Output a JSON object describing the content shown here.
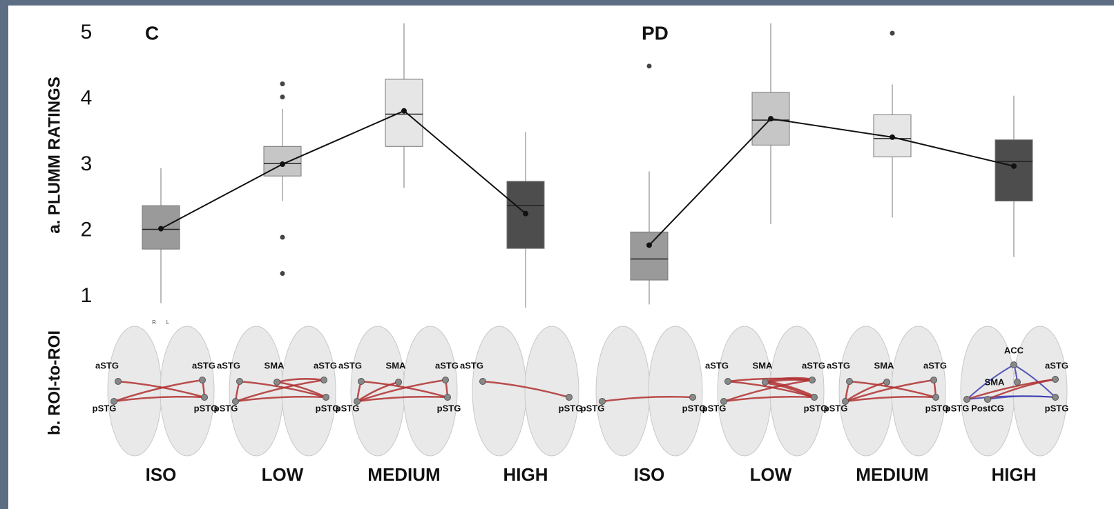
{
  "chart_data": [
    {
      "type": "box",
      "title": "C",
      "ylabel": "a. PLUMM RATINGS",
      "categories": [
        "ISO",
        "LOW",
        "MEDIUM",
        "HIGH"
      ],
      "colors": [
        "#9a9a9a",
        "#c6c6c6",
        "#e6e6e6",
        "#4d4d4d"
      ],
      "boxes": [
        {
          "whislo": 0.9,
          "q1": 1.72,
          "med": 2.02,
          "q3": 2.38,
          "whishi": 2.95,
          "mean": 2.03,
          "fliers": []
        },
        {
          "whislo": 2.45,
          "q1": 2.83,
          "med": 3.02,
          "q3": 3.28,
          "whishi": 3.85,
          "mean": 3.01,
          "fliers": [
            4.23,
            4.03,
            1.9,
            1.35
          ]
        },
        {
          "whislo": 2.65,
          "q1": 3.28,
          "med": 3.77,
          "q3": 4.3,
          "whishi": 5.15,
          "mean": 3.82,
          "fliers": []
        },
        {
          "whislo": 0.83,
          "q1": 1.73,
          "med": 2.38,
          "q3": 2.75,
          "whishi": 3.5,
          "mean": 2.26,
          "fliers": []
        }
      ],
      "mean_line": true,
      "ylim": [
        0.8,
        5.2
      ],
      "yticks": [
        1,
        2,
        3,
        4,
        5
      ]
    },
    {
      "type": "box",
      "title": "PD",
      "categories": [
        "ISO",
        "LOW",
        "MEDIUM",
        "HIGH"
      ],
      "colors": [
        "#9a9a9a",
        "#c6c6c6",
        "#e6e6e6",
        "#4d4d4d"
      ],
      "boxes": [
        {
          "whislo": 0.88,
          "q1": 1.25,
          "med": 1.57,
          "q3": 1.98,
          "whishi": 2.9,
          "mean": 1.78,
          "fliers": [
            4.5
          ]
        },
        {
          "whislo": 2.1,
          "q1": 3.3,
          "med": 3.68,
          "q3": 4.1,
          "whishi": 5.15,
          "mean": 3.7,
          "fliers": []
        },
        {
          "whislo": 2.2,
          "q1": 3.12,
          "med": 3.4,
          "q3": 3.76,
          "whishi": 4.22,
          "mean": 3.42,
          "fliers": [
            5.0
          ]
        },
        {
          "whislo": 1.6,
          "q1": 2.45,
          "med": 3.05,
          "q3": 3.38,
          "whishi": 4.05,
          "mean": 2.98,
          "fliers": []
        }
      ],
      "mean_line": true
    }
  ],
  "roi_panel": {
    "label": "b. ROI-to-ROI",
    "orientation": [
      "R",
      "L"
    ],
    "brains": [
      {
        "labels": [
          "aSTG",
          "aSTG",
          "pSTG",
          "pSTG"
        ]
      },
      {
        "labels": [
          "aSTG",
          "SMA",
          "aSTG",
          "pSTG",
          "pSTG"
        ]
      },
      {
        "labels": [
          "aSTG",
          "SMA",
          "aSTG",
          "pSTG",
          "pSTG"
        ]
      },
      {
        "labels": [
          "aSTG",
          "pSTG"
        ]
      },
      {
        "labels": [
          "pSTG",
          "pSTG"
        ]
      },
      {
        "labels": [
          "aSTG",
          "SMA",
          "aSTG",
          "pSTG",
          "pSTG"
        ]
      },
      {
        "labels": [
          "aSTG",
          "SMA",
          "aSTG",
          "pSTG",
          "pSTG"
        ]
      },
      {
        "labels": [
          "ACC",
          "aSTG",
          "SMA",
          "pSTG",
          "PostCG",
          "pSTG"
        ]
      }
    ]
  }
}
